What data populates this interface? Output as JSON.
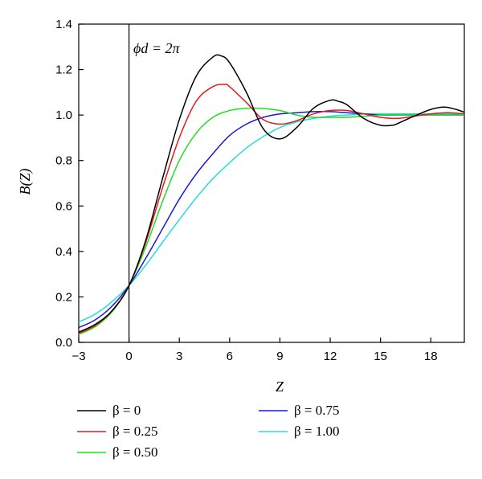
{
  "chart_data": {
    "type": "line",
    "title": "",
    "xlabel": "Z",
    "ylabel": "B(Z)",
    "xlim": [
      -3,
      20
    ],
    "ylim": [
      0.0,
      1.4
    ],
    "x_ticks": [
      -3,
      0,
      3,
      6,
      9,
      12,
      15,
      18
    ],
    "y_ticks": [
      0.0,
      0.2,
      0.4,
      0.6,
      0.8,
      1.0,
      1.2,
      1.4
    ],
    "grid": false,
    "vertical_line_x": 0,
    "annotation": "ϕd = 2π",
    "legend_position": "bottom",
    "series": [
      {
        "name": "β = 0",
        "color": "#000000",
        "x": [
          -3,
          -2,
          -1,
          0,
          1,
          2,
          3,
          4,
          5,
          5.5,
          6,
          7,
          8,
          9,
          10,
          11,
          12,
          12.5,
          13,
          14,
          15,
          15.7,
          16,
          17,
          18,
          18.8,
          19.5,
          20
        ],
        "y": [
          0.045,
          0.08,
          0.14,
          0.25,
          0.45,
          0.72,
          0.98,
          1.17,
          1.255,
          1.26,
          1.23,
          1.1,
          0.94,
          0.895,
          0.945,
          1.03,
          1.065,
          1.06,
          1.045,
          0.985,
          0.955,
          0.955,
          0.962,
          0.995,
          1.025,
          1.035,
          1.025,
          1.012
        ]
      },
      {
        "name": "β = 0.25",
        "color": "#e31a1c",
        "x": [
          -3,
          -2,
          -1,
          0,
          1,
          2,
          3,
          4,
          5,
          5.7,
          6,
          7,
          8,
          9,
          10,
          11,
          12,
          13,
          14,
          15,
          16,
          17,
          18,
          19,
          20
        ],
        "y": [
          0.04,
          0.075,
          0.14,
          0.25,
          0.44,
          0.68,
          0.9,
          1.06,
          1.125,
          1.135,
          1.125,
          1.055,
          0.98,
          0.96,
          0.975,
          1.005,
          1.02,
          1.02,
          1.005,
          0.99,
          0.985,
          0.995,
          1.005,
          1.01,
          1.005
        ]
      },
      {
        "name": "β = 0.50",
        "color": "#22dd22",
        "x": [
          -3,
          -2,
          -1,
          0,
          1,
          2,
          3,
          4,
          5,
          6,
          7,
          7.8,
          9,
          10,
          11,
          12,
          13,
          14,
          15,
          16,
          17,
          18,
          19,
          20
        ],
        "y": [
          0.035,
          0.07,
          0.135,
          0.25,
          0.42,
          0.62,
          0.8,
          0.92,
          0.99,
          1.02,
          1.03,
          1.03,
          1.02,
          1.0,
          0.99,
          0.99,
          0.99,
          0.995,
          1.0,
          1.0,
          1.0,
          1.0,
          1.0,
          1.0
        ]
      },
      {
        "name": "β = 0.75",
        "color": "#1a1acc",
        "x": [
          -3,
          -2,
          -1,
          0,
          1,
          2,
          3,
          4,
          5,
          6,
          7,
          8,
          9,
          10,
          11,
          12,
          13,
          14,
          15,
          16,
          17,
          18,
          19,
          20
        ],
        "y": [
          0.065,
          0.1,
          0.16,
          0.25,
          0.37,
          0.5,
          0.63,
          0.74,
          0.83,
          0.91,
          0.96,
          0.99,
          1.005,
          1.01,
          1.015,
          1.015,
          1.01,
          1.005,
          1.0,
          1.0,
          1.0,
          1.0,
          1.0,
          1.0
        ]
      },
      {
        "name": "β = 1.00",
        "color": "#22dddd",
        "x": [
          -3,
          -2,
          -1,
          0,
          1,
          2,
          3,
          4,
          5,
          6,
          7,
          8,
          9,
          10,
          11,
          12,
          13,
          14,
          15,
          16,
          17,
          18,
          19,
          20
        ],
        "y": [
          0.09,
          0.125,
          0.18,
          0.25,
          0.34,
          0.44,
          0.54,
          0.635,
          0.72,
          0.79,
          0.855,
          0.905,
          0.945,
          0.97,
          0.985,
          0.995,
          1.0,
          1.005,
          1.005,
          1.005,
          1.005,
          1.005,
          1.005,
          1.005
        ]
      }
    ]
  }
}
